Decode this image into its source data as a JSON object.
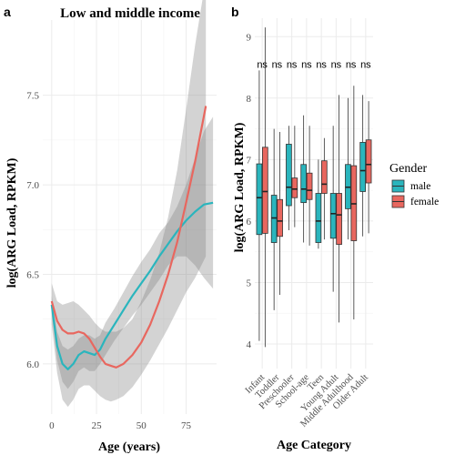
{
  "panel_a_tag": "a",
  "panel_b_tag": "b",
  "colors": {
    "male": "#2ab5bd",
    "female": "#e8675f",
    "band": "#808080",
    "grid": "#ebebeb"
  },
  "chart_data": [
    {
      "type": "line",
      "title": "Low and middle income",
      "xlabel": "Age (years)",
      "ylabel": "log(ARG Load, RPKM)",
      "xlim": [
        -5,
        92
      ],
      "ylim": [
        5.72,
        7.92
      ],
      "x_ticks": [
        0,
        25,
        50,
        75
      ],
      "y_ticks": [
        6.0,
        6.5,
        7.0,
        7.5
      ],
      "x_tick_labels": [
        "0",
        "25",
        "50",
        "75"
      ],
      "y_tick_labels": [
        "6.0",
        "6.5",
        "7.0",
        "7.5"
      ],
      "grid": true,
      "legend": "none",
      "series": [
        {
          "key": "male",
          "x": [
            0,
            3,
            6,
            9,
            12,
            15,
            18,
            21,
            24,
            27,
            30,
            35,
            40,
            45,
            50,
            55,
            60,
            65,
            70,
            75,
            80,
            85,
            90
          ],
          "y": [
            6.33,
            6.1,
            6.0,
            5.97,
            6.0,
            6.05,
            6.07,
            6.06,
            6.05,
            6.08,
            6.14,
            6.22,
            6.3,
            6.38,
            6.45,
            6.52,
            6.6,
            6.67,
            6.74,
            6.8,
            6.85,
            6.89,
            6.9
          ],
          "lower": [
            6.28,
            6.02,
            5.9,
            5.86,
            5.9,
            5.96,
            5.98,
            5.96,
            5.96,
            6.0,
            6.05,
            6.13,
            6.2,
            6.27,
            6.33,
            6.4,
            6.47,
            6.55,
            6.6,
            6.6,
            6.55,
            6.48,
            6.42
          ],
          "upper": [
            6.38,
            6.18,
            6.1,
            6.08,
            6.1,
            6.14,
            6.16,
            6.16,
            6.14,
            6.16,
            6.23,
            6.31,
            6.4,
            6.49,
            6.57,
            6.64,
            6.73,
            6.79,
            6.88,
            7.0,
            7.15,
            7.3,
            7.38
          ]
        },
        {
          "key": "female",
          "x": [
            0,
            3,
            6,
            9,
            12,
            15,
            18,
            21,
            24,
            27,
            30,
            33,
            36,
            40,
            45,
            50,
            55,
            60,
            65,
            70,
            75,
            80,
            86
          ],
          "y": [
            6.35,
            6.24,
            6.19,
            6.17,
            6.17,
            6.18,
            6.17,
            6.14,
            6.09,
            6.04,
            6.0,
            5.99,
            5.98,
            6.0,
            6.05,
            6.12,
            6.22,
            6.35,
            6.5,
            6.68,
            6.9,
            7.13,
            7.44
          ],
          "lower": [
            6.22,
            5.95,
            5.8,
            5.76,
            5.8,
            5.86,
            5.88,
            5.88,
            5.85,
            5.82,
            5.8,
            5.79,
            5.8,
            5.82,
            5.87,
            5.94,
            6.02,
            6.11,
            6.2,
            6.3,
            6.4,
            6.48,
            6.6
          ],
          "upper": [
            6.45,
            6.35,
            6.33,
            6.34,
            6.35,
            6.33,
            6.3,
            6.27,
            6.23,
            6.2,
            6.18,
            6.18,
            6.18,
            6.2,
            6.25,
            6.35,
            6.47,
            6.62,
            6.82,
            7.08,
            7.42,
            7.78,
            8.15
          ]
        }
      ]
    },
    {
      "type": "box",
      "title": "",
      "xlabel": "Age Category",
      "ylabel": "log(ARG Load, RPKM)",
      "ylim": [
        3.6,
        9.3
      ],
      "y_ticks": [
        4,
        5,
        6,
        7,
        8,
        9
      ],
      "y_tick_labels": [
        "4",
        "5",
        "6",
        "7",
        "8",
        "9"
      ],
      "grid": true,
      "categories": [
        "Infant",
        "Toddler",
        "Preschooler",
        "School-age",
        "Teen",
        "Young Adult",
        "Middle Adulthood",
        "Older Adult"
      ],
      "annotations": [
        "ns",
        "ns",
        "ns",
        "ns",
        "ns",
        "ns",
        "ns",
        "ns"
      ],
      "annotation_y": 8.55,
      "legend": {
        "title": "Gender",
        "position": "right",
        "entries": [
          {
            "key": "male",
            "label": "male"
          },
          {
            "key": "female",
            "label": "female"
          }
        ]
      },
      "series": [
        {
          "name": "male",
          "key": "male",
          "stats": [
            {
              "min": 4.05,
              "q1": 5.78,
              "median": 6.38,
              "q3": 6.93,
              "max": 8.45
            },
            {
              "min": 4.55,
              "q1": 5.65,
              "median": 6.05,
              "q3": 6.42,
              "max": 7.5
            },
            {
              "min": 5.85,
              "q1": 6.25,
              "median": 6.55,
              "q3": 7.25,
              "max": 7.55
            },
            {
              "min": 5.65,
              "q1": 6.3,
              "median": 6.52,
              "q3": 6.92,
              "max": 7.72
            },
            {
              "min": 5.55,
              "q1": 5.65,
              "median": 6.0,
              "q3": 6.45,
              "max": 7.0
            },
            {
              "min": 4.85,
              "q1": 5.72,
              "median": 6.12,
              "q3": 6.45,
              "max": 7.55
            },
            {
              "min": 5.7,
              "q1": 6.2,
              "median": 6.55,
              "q3": 6.92,
              "max": 8.0
            },
            {
              "min": 5.75,
              "q1": 6.48,
              "median": 6.82,
              "q3": 7.28,
              "max": 8.05
            }
          ]
        },
        {
          "name": "female",
          "key": "female",
          "stats": [
            {
              "min": 3.95,
              "q1": 5.8,
              "median": 6.48,
              "q3": 7.2,
              "max": 9.15
            },
            {
              "min": 4.8,
              "q1": 5.75,
              "median": 6.0,
              "q3": 6.35,
              "max": 7.45
            },
            {
              "min": 5.9,
              "q1": 6.38,
              "median": 6.52,
              "q3": 6.7,
              "max": 7.55
            },
            {
              "min": 5.6,
              "q1": 6.35,
              "median": 6.5,
              "q3": 6.78,
              "max": 7.55
            },
            {
              "min": 5.7,
              "q1": 6.45,
              "median": 6.6,
              "q3": 6.98,
              "max": 7.35
            },
            {
              "min": 4.35,
              "q1": 5.62,
              "median": 6.1,
              "q3": 6.45,
              "max": 8.05
            },
            {
              "min": 4.4,
              "q1": 5.68,
              "median": 6.28,
              "q3": 6.9,
              "max": 8.2
            },
            {
              "min": 5.8,
              "q1": 6.62,
              "median": 6.92,
              "q3": 7.32,
              "max": 7.95
            }
          ]
        }
      ]
    }
  ]
}
